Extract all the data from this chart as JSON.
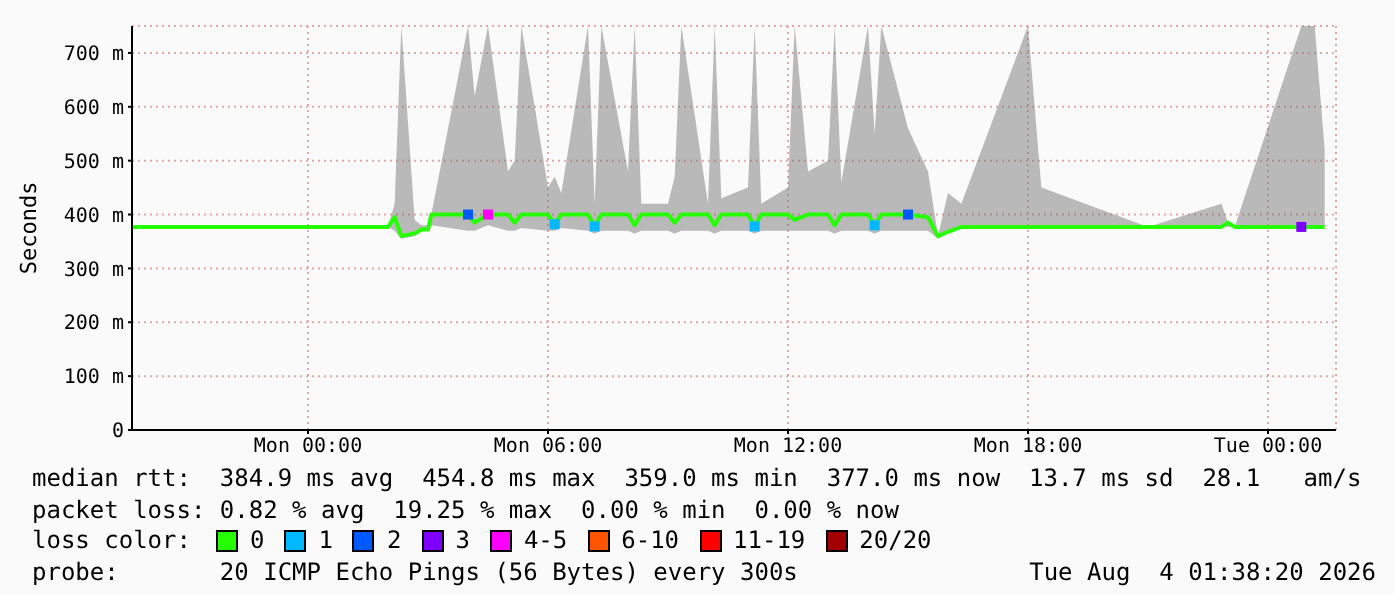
{
  "chart_data": {
    "type": "line",
    "ylabel": "Seconds",
    "legend_title": "loss color:",
    "legend": "bottom",
    "grid": true,
    "line_style": "solid",
    "marker": "none",
    "xlim": [
      "2026-08-02T19:36",
      "2026-08-04T01:42"
    ],
    "xticks": [
      {
        "value": "2026-08-03T00:00",
        "label": "Mon 00:00"
      },
      {
        "value": "2026-08-03T06:00",
        "label": "Mon 06:00"
      },
      {
        "value": "2026-08-03T12:00",
        "label": "Mon 12:00"
      },
      {
        "value": "2026-08-03T18:00",
        "label": "Mon 18:00"
      },
      {
        "value": "2026-08-04T00:00",
        "label": "Tue 00:00"
      }
    ],
    "ylim": [
      0,
      750
    ],
    "yticks": [
      0,
      {
        "value": 100,
        "label": "100 m"
      },
      {
        "value": 200,
        "label": "200 m"
      },
      {
        "value": 300,
        "label": "300 m"
      },
      {
        "value": 400,
        "label": "400 m"
      },
      {
        "value": 500,
        "label": "500 m"
      },
      {
        "value": 600,
        "label": "600 m"
      },
      {
        "value": 700,
        "label": "700 m"
      }
    ],
    "x": [
      "2026-08-02T19:36",
      "2026-08-02T22:00",
      "2026-08-03T02:00",
      "2026-08-03T02:10",
      "2026-08-03T02:20",
      "2026-08-03T02:40",
      "2026-08-03T02:50",
      "2026-08-03T03:00",
      "2026-08-03T03:05",
      "2026-08-03T04:00",
      "2026-08-03T04:10",
      "2026-08-03T04:30",
      "2026-08-03T05:00",
      "2026-08-03T05:10",
      "2026-08-03T05:20",
      "2026-08-03T06:00",
      "2026-08-03T06:10",
      "2026-08-03T06:20",
      "2026-08-03T07:00",
      "2026-08-03T07:10",
      "2026-08-03T07:20",
      "2026-08-03T08:00",
      "2026-08-03T08:10",
      "2026-08-03T08:20",
      "2026-08-03T09:00",
      "2026-08-03T09:10",
      "2026-08-03T09:20",
      "2026-08-03T10:00",
      "2026-08-03T10:10",
      "2026-08-03T10:20",
      "2026-08-03T11:00",
      "2026-08-03T11:10",
      "2026-08-03T11:20",
      "2026-08-03T12:00",
      "2026-08-03T12:10",
      "2026-08-03T12:30",
      "2026-08-03T13:00",
      "2026-08-03T13:10",
      "2026-08-03T13:20",
      "2026-08-03T14:00",
      "2026-08-03T14:10",
      "2026-08-03T14:20",
      "2026-08-03T15:00",
      "2026-08-03T15:30",
      "2026-08-03T15:45",
      "2026-08-03T16:00",
      "2026-08-03T16:20",
      "2026-08-03T18:00",
      "2026-08-03T18:20",
      "2026-08-03T21:00",
      "2026-08-03T22:50",
      "2026-08-03T23:00",
      "2026-08-03T23:10",
      "2026-08-04T00:50",
      "2026-08-04T01:10",
      "2026-08-04T01:25"
    ],
    "series": [
      {
        "name": "0",
        "color": "#26ff00",
        "values": [
          377,
          377,
          377,
          395,
          360,
          365,
          372,
          372,
          400,
          400,
          385,
          400,
          400,
          385,
          400,
          400,
          382,
          400,
          400,
          378,
          400,
          400,
          380,
          400,
          400,
          385,
          400,
          400,
          380,
          400,
          400,
          378,
          400,
          400,
          390,
          400,
          400,
          380,
          400,
          400,
          380,
          400,
          400,
          395,
          360,
          368,
          377,
          377,
          377,
          377,
          377,
          385,
          377,
          377,
          377,
          377
        ],
        "lower": [
          377,
          377,
          377,
          370,
          355,
          360,
          368,
          370,
          380,
          370,
          370,
          380,
          370,
          370,
          375,
          370,
          370,
          375,
          370,
          365,
          370,
          370,
          365,
          370,
          370,
          365,
          370,
          370,
          365,
          370,
          370,
          365,
          370,
          370,
          370,
          370,
          370,
          365,
          370,
          370,
          365,
          370,
          370,
          370,
          355,
          365,
          377,
          377,
          377,
          377,
          377,
          377,
          377,
          377,
          377,
          377
        ],
        "upper": [
          377,
          377,
          377,
          420,
          750,
          390,
          380,
          380,
          400,
          750,
          620,
          750,
          480,
          500,
          750,
          450,
          470,
          440,
          750,
          420,
          750,
          480,
          750,
          420,
          420,
          470,
          750,
          420,
          750,
          430,
          450,
          750,
          420,
          450,
          750,
          480,
          500,
          750,
          460,
          750,
          550,
          750,
          560,
          480,
          360,
          440,
          420,
          750,
          450,
          377,
          420,
          385,
          377,
          750,
          750,
          520
        ]
      },
      {
        "name": "1",
        "color": "#00b8ff",
        "type": "scatter",
        "marker": "square",
        "values": [
          null,
          null,
          null,
          null,
          null,
          null,
          null,
          null,
          null,
          null,
          null,
          null,
          null,
          null,
          null,
          null,
          382,
          null,
          null,
          378,
          null,
          null,
          null,
          null,
          null,
          null,
          null,
          null,
          null,
          null,
          null,
          378,
          null,
          null,
          null,
          null,
          null,
          null,
          null,
          null,
          380,
          null,
          null,
          null,
          null,
          null,
          null,
          null,
          null,
          null,
          null,
          null,
          null,
          null,
          null,
          null
        ]
      },
      {
        "name": "2",
        "color": "#0059ff",
        "type": "scatter",
        "marker": "square",
        "values": [
          null,
          null,
          null,
          null,
          null,
          null,
          null,
          null,
          null,
          400,
          null,
          null,
          null,
          null,
          null,
          null,
          null,
          null,
          null,
          null,
          null,
          null,
          null,
          null,
          null,
          null,
          null,
          null,
          null,
          null,
          null,
          null,
          null,
          null,
          null,
          null,
          null,
          null,
          null,
          null,
          null,
          null,
          400,
          null,
          null,
          null,
          null,
          null,
          null,
          null,
          null,
          null,
          null,
          null,
          null,
          null
        ]
      },
      {
        "name": "3",
        "color": "#7e00ff",
        "type": "scatter",
        "marker": "square",
        "values": [
          null,
          null,
          null,
          null,
          null,
          null,
          null,
          null,
          null,
          null,
          null,
          null,
          null,
          null,
          null,
          null,
          null,
          null,
          null,
          null,
          null,
          null,
          null,
          null,
          null,
          null,
          null,
          null,
          null,
          null,
          null,
          null,
          null,
          null,
          null,
          null,
          null,
          null,
          null,
          null,
          null,
          null,
          null,
          null,
          null,
          null,
          null,
          null,
          null,
          null,
          null,
          null,
          null,
          377,
          null,
          null
        ]
      },
      {
        "name": "4-5",
        "color": "#ff00ff",
        "type": "scatter",
        "marker": "square",
        "values": [
          null,
          null,
          null,
          null,
          null,
          null,
          null,
          null,
          null,
          null,
          null,
          400,
          null,
          null,
          null,
          null,
          null,
          null,
          null,
          null,
          null,
          null,
          null,
          null,
          null,
          null,
          null,
          null,
          null,
          null,
          null,
          null,
          null,
          null,
          null,
          null,
          null,
          null,
          null,
          null,
          null,
          null,
          null,
          null,
          null,
          null,
          null,
          null,
          null,
          null,
          null,
          null,
          null,
          null,
          null,
          null
        ]
      },
      {
        "name": "6-10",
        "color": "#ff5500",
        "type": "scatter",
        "marker": "square",
        "values": [
          null,
          null,
          null,
          null,
          null,
          null,
          null,
          null,
          null,
          null,
          null,
          null,
          null,
          null,
          null,
          null,
          null,
          null,
          null,
          null,
          null,
          null,
          null,
          null,
          null,
          null,
          null,
          null,
          null,
          null,
          null,
          null,
          null,
          null,
          null,
          null,
          null,
          null,
          null,
          null,
          null,
          null,
          null,
          null,
          null,
          null,
          null,
          null,
          null,
          null,
          null,
          null,
          null,
          null,
          null,
          null
        ]
      },
      {
        "name": "11-19",
        "color": "#ff0000",
        "type": "scatter",
        "marker": "square",
        "values": [
          null,
          null,
          null,
          null,
          null,
          null,
          null,
          null,
          null,
          null,
          null,
          null,
          null,
          null,
          null,
          null,
          null,
          null,
          null,
          null,
          null,
          null,
          null,
          null,
          null,
          null,
          null,
          null,
          null,
          null,
          null,
          null,
          null,
          null,
          null,
          null,
          null,
          null,
          null,
          null,
          null,
          null,
          null,
          null,
          null,
          null,
          null,
          null,
          null,
          null,
          null,
          null,
          null,
          null,
          null,
          null
        ]
      },
      {
        "name": "20/20",
        "color": "#a10000",
        "type": "scatter",
        "marker": "square",
        "values": [
          null,
          null,
          null,
          null,
          null,
          null,
          null,
          null,
          null,
          null,
          null,
          null,
          null,
          null,
          null,
          null,
          null,
          null,
          null,
          null,
          null,
          null,
          null,
          null,
          null,
          null,
          null,
          null,
          null,
          null,
          null,
          null,
          null,
          null,
          null,
          null,
          null,
          null,
          null,
          null,
          null,
          null,
          null,
          null,
          null,
          null,
          null,
          null,
          null,
          null,
          null,
          null,
          null,
          null,
          null,
          null
        ]
      }
    ],
    "annotations": [
      "median rtt:  384.9 ms avg  454.8 ms max  359.0 ms min  377.0 ms now  13.7 ms sd  28.1   am/s",
      "packet loss: 0.82 % avg  19.25 % max  0.00 % min  0.00 % now",
      "probe:       20 ICMP Echo Pings (56 Bytes) every 300s",
      "Tue Aug  4 01:38:20 2026"
    ]
  }
}
